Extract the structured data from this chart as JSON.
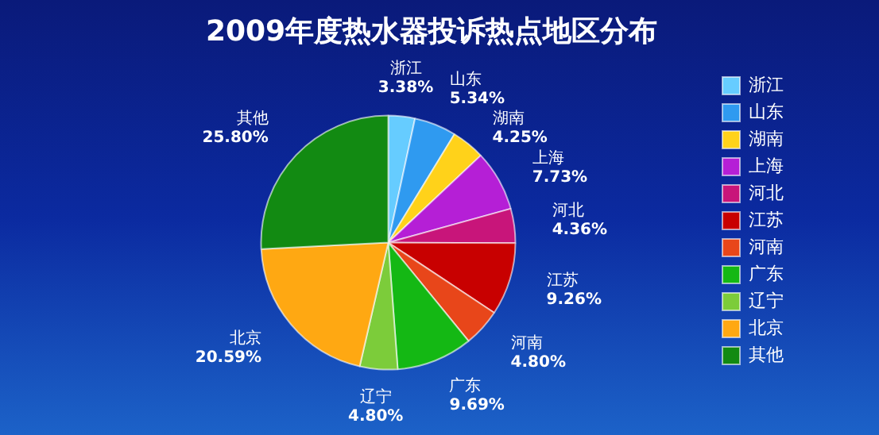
{
  "chart_data": {
    "type": "pie",
    "title": "2009年度热水器投诉热点地区分布",
    "categories": [
      "浙江",
      "山东",
      "湖南",
      "上海",
      "河北",
      "江苏",
      "河南",
      "广东",
      "辽宁",
      "北京",
      "其他"
    ],
    "values": [
      3.38,
      5.34,
      4.25,
      7.73,
      4.36,
      9.26,
      4.8,
      9.69,
      4.8,
      20.59,
      25.8
    ],
    "colors": [
      "#66ccff",
      "#2f9af0",
      "#ffd21a",
      "#b51fd6",
      "#c8157a",
      "#c80000",
      "#e8461a",
      "#14b814",
      "#7ccc3a",
      "#ffa812",
      "#128a12"
    ],
    "value_labels": [
      "3.38%",
      "5.34%",
      "4.25%",
      "7.73%",
      "4.36%",
      "9.26%",
      "4.80%",
      "9.69%",
      "4.80%",
      "20.59%",
      "25.80%"
    ],
    "legend": "right"
  }
}
